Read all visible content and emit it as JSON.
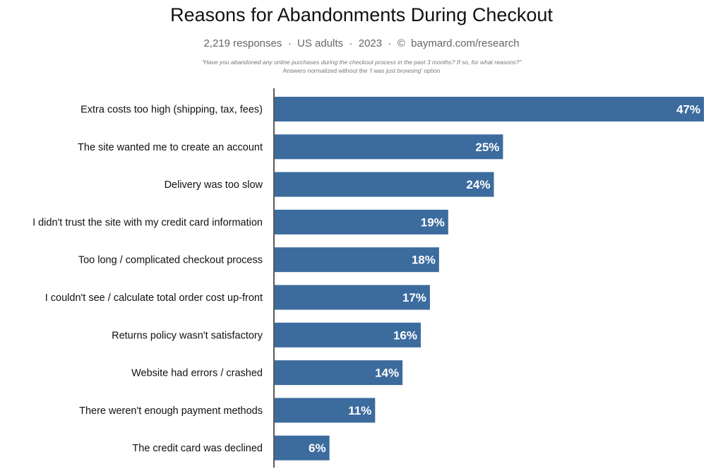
{
  "chart_data": {
    "type": "bar",
    "orientation": "horizontal",
    "title": "Reasons for Abandonments During Checkout",
    "subtitle": "2,219 responses  ·  US adults  ·  2023  ·  ©  baymard.com/research",
    "question": "\"Have you abandoned any online purchases during the checkout process in the past 3 months? If so, for what reasons?\"",
    "note_prefix": "Answers normalized without the ",
    "note_italic": "'I was just browsing'",
    "note_suffix": " option",
    "categories": [
      "Extra costs too high (shipping, tax, fees)",
      "The site wanted me to create an account",
      "Delivery was too slow",
      "I didn't trust the site with my credit card information",
      "Too long / complicated checkout process",
      "I couldn't see / calculate total order cost up-front",
      "Returns policy wasn't satisfactory",
      "Website had errors / crashed",
      "There weren't enough payment methods",
      "The credit card was declined"
    ],
    "values": [
      47,
      25,
      24,
      19,
      18,
      17,
      16,
      14,
      11,
      6
    ],
    "value_labels": [
      "47%",
      "25%",
      "24%",
      "19%",
      "18%",
      "17%",
      "16%",
      "14%",
      "11%",
      "6%"
    ],
    "unit": "%",
    "xlim": [
      0,
      47
    ],
    "grid": false,
    "bar_color": "#3c6b9e",
    "label_color": "#ffffff"
  }
}
